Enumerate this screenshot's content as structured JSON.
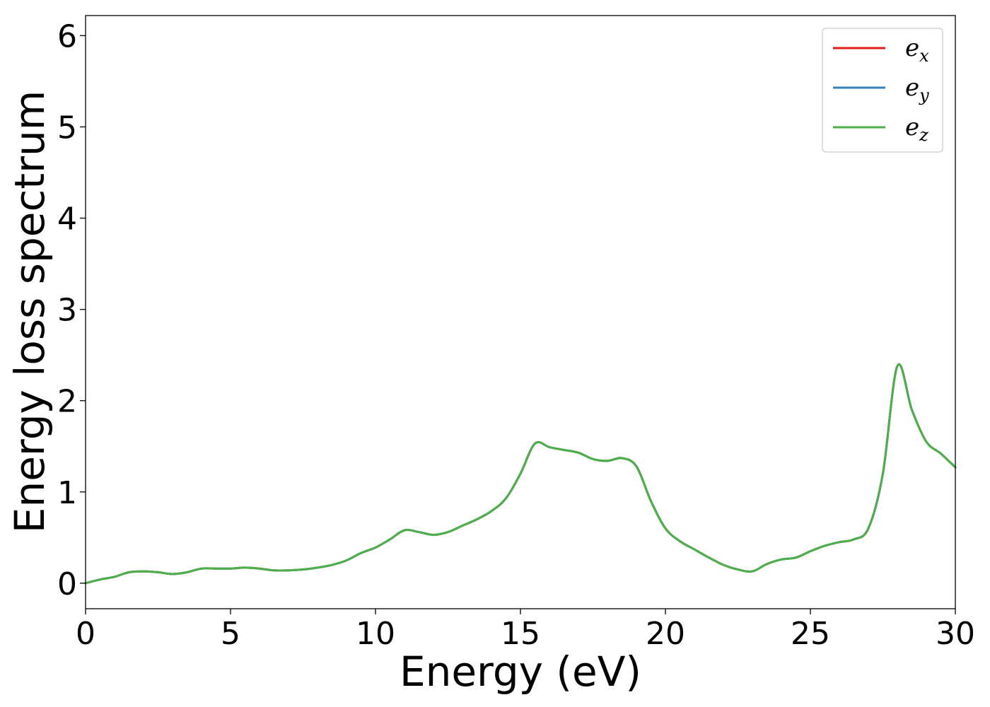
{
  "chart_data": {
    "type": "line",
    "title": "",
    "xlabel": "Energy (eV)",
    "ylabel": "Energy loss spectrum",
    "xlim": [
      0,
      30
    ],
    "ylim": [
      -0.28,
      6.22
    ],
    "xticks": [
      0,
      5,
      10,
      15,
      20,
      25,
      30
    ],
    "xtick_labels": [
      "0",
      "5",
      "10",
      "15",
      "20",
      "25",
      "30"
    ],
    "yticks": [
      0,
      1,
      2,
      3,
      4,
      5,
      6
    ],
    "ytick_labels": [
      "0",
      "1",
      "2",
      "3",
      "4",
      "5",
      "6"
    ],
    "grid": false,
    "legend_position": "top-right",
    "x": [
      0,
      0.5,
      1,
      1.5,
      2,
      2.5,
      3,
      3.5,
      4,
      4.5,
      5,
      5.5,
      6,
      6.5,
      7,
      7.5,
      8,
      8.5,
      9,
      9.5,
      10,
      10.5,
      11,
      11.5,
      12,
      12.5,
      13,
      13.5,
      14,
      14.5,
      15,
      15.5,
      16,
      16.5,
      17,
      17.5,
      18,
      18.5,
      19,
      19.5,
      20,
      20.5,
      21,
      21.5,
      22,
      22.5,
      23,
      23.5,
      24,
      24.5,
      25,
      25.5,
      26,
      26.5,
      27,
      27.5,
      28,
      28.5,
      29,
      29.5,
      30
    ],
    "series": [
      {
        "name": "e_x",
        "label_base": "e",
        "label_sub": "x",
        "color": "#e41a1c",
        "values": [
          0.0,
          0.04,
          0.07,
          0.12,
          0.13,
          0.12,
          0.1,
          0.12,
          0.16,
          0.16,
          0.16,
          0.17,
          0.16,
          0.14,
          0.14,
          0.15,
          0.17,
          0.2,
          0.25,
          0.33,
          0.39,
          0.48,
          0.58,
          0.56,
          0.53,
          0.56,
          0.63,
          0.7,
          0.79,
          0.93,
          1.2,
          1.53,
          1.49,
          1.46,
          1.43,
          1.36,
          1.34,
          1.37,
          1.28,
          0.9,
          0.6,
          0.46,
          0.37,
          0.28,
          0.2,
          0.15,
          0.13,
          0.21,
          0.26,
          0.28,
          0.35,
          0.41,
          0.45,
          0.48,
          0.6,
          1.2,
          2.38,
          1.9,
          1.55,
          1.42,
          1.27
        ]
      },
      {
        "name": "e_y",
        "label_base": "e",
        "label_sub": "y",
        "color": "#377eb8",
        "values": [
          0.0,
          0.04,
          0.07,
          0.12,
          0.13,
          0.12,
          0.1,
          0.12,
          0.16,
          0.16,
          0.16,
          0.17,
          0.16,
          0.14,
          0.14,
          0.15,
          0.17,
          0.2,
          0.25,
          0.33,
          0.39,
          0.48,
          0.58,
          0.56,
          0.53,
          0.56,
          0.63,
          0.7,
          0.79,
          0.93,
          1.2,
          1.53,
          1.49,
          1.46,
          1.43,
          1.36,
          1.34,
          1.37,
          1.28,
          0.9,
          0.6,
          0.46,
          0.37,
          0.28,
          0.2,
          0.15,
          0.13,
          0.21,
          0.26,
          0.28,
          0.35,
          0.41,
          0.45,
          0.48,
          0.6,
          1.2,
          2.38,
          1.9,
          1.55,
          1.42,
          1.27
        ]
      },
      {
        "name": "e_z",
        "label_base": "e",
        "label_sub": "z",
        "color": "#4daf4a",
        "values": [
          0.0,
          0.04,
          0.07,
          0.12,
          0.13,
          0.12,
          0.1,
          0.12,
          0.16,
          0.16,
          0.16,
          0.17,
          0.16,
          0.14,
          0.14,
          0.15,
          0.17,
          0.2,
          0.25,
          0.33,
          0.39,
          0.48,
          0.58,
          0.56,
          0.53,
          0.56,
          0.63,
          0.7,
          0.79,
          0.93,
          1.2,
          1.53,
          1.49,
          1.46,
          1.43,
          1.36,
          1.34,
          1.37,
          1.28,
          0.9,
          0.6,
          0.46,
          0.37,
          0.28,
          0.2,
          0.15,
          0.13,
          0.21,
          0.26,
          0.28,
          0.35,
          0.41,
          0.45,
          0.48,
          0.6,
          1.2,
          2.38,
          1.9,
          1.55,
          1.42,
          1.27
        ]
      }
    ]
  }
}
